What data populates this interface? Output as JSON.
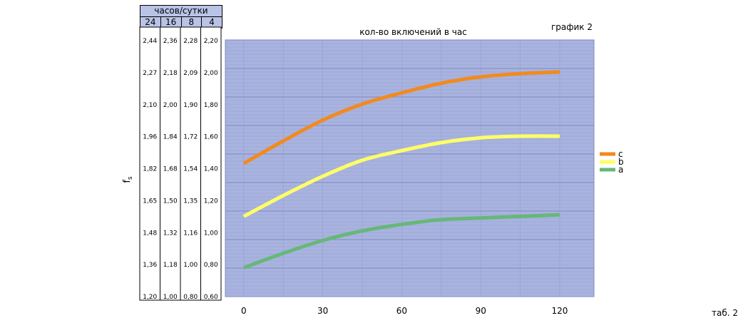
{
  "header": {
    "title": "часов/сутки",
    "columns": [
      "24",
      "16",
      "8",
      "4"
    ]
  },
  "ylabel": "fs",
  "table_label": "таб. 2",
  "colors": {
    "plot_bg": "#a9b3e0",
    "grid": "#8e98c6",
    "header_bg": "#b9c3e6"
  },
  "chart_data": {
    "type": "line",
    "title": "кол-во включений в час",
    "subtitle": "график 2",
    "xlabel": "",
    "ylabel": "fs",
    "x": [
      0,
      30,
      60,
      90,
      120
    ],
    "xlim": [
      -7,
      133
    ],
    "ylim": [
      0.6,
      2.2
    ],
    "y_axis_columns": [
      {
        "header": "24",
        "ticks": [
          "2,44",
          "2,27",
          "2,10",
          "1,96",
          "1,82",
          "1,65",
          "1,48",
          "1,36",
          "1,20"
        ]
      },
      {
        "header": "16",
        "ticks": [
          "2,36",
          "2,18",
          "2,00",
          "1,84",
          "1,68",
          "1,50",
          "1,32",
          "1,18",
          "1,00"
        ]
      },
      {
        "header": "8",
        "ticks": [
          "2,28",
          "2,09",
          "1,90",
          "1,72",
          "1,54",
          "1,35",
          "1,16",
          "1,00",
          "0,80"
        ]
      },
      {
        "header": "4",
        "ticks": [
          "2,20",
          "2,00",
          "1,80",
          "1,60",
          "1,40",
          "1,20",
          "1,00",
          "0,80",
          "0,60"
        ]
      }
    ],
    "legend_position": "right",
    "series": [
      {
        "name": "c",
        "color": "#f28a1e",
        "points": [
          [
            0,
            1.43
          ],
          [
            15,
            1.57
          ],
          [
            30,
            1.7
          ],
          [
            45,
            1.8
          ],
          [
            60,
            1.87
          ],
          [
            75,
            1.93
          ],
          [
            90,
            1.97
          ],
          [
            105,
            1.99
          ],
          [
            120,
            2.0
          ]
        ]
      },
      {
        "name": "b",
        "color": "#ffff66",
        "points": [
          [
            0,
            1.1
          ],
          [
            15,
            1.23
          ],
          [
            30,
            1.35
          ],
          [
            45,
            1.45
          ],
          [
            60,
            1.51
          ],
          [
            75,
            1.56
          ],
          [
            90,
            1.59
          ],
          [
            105,
            1.6
          ],
          [
            120,
            1.6
          ]
        ]
      },
      {
        "name": "a",
        "color": "#66b878",
        "points": [
          [
            0,
            0.78
          ],
          [
            15,
            0.87
          ],
          [
            30,
            0.95
          ],
          [
            45,
            1.01
          ],
          [
            60,
            1.05
          ],
          [
            75,
            1.08
          ],
          [
            90,
            1.09
          ],
          [
            105,
            1.1
          ],
          [
            120,
            1.11
          ]
        ]
      }
    ]
  }
}
